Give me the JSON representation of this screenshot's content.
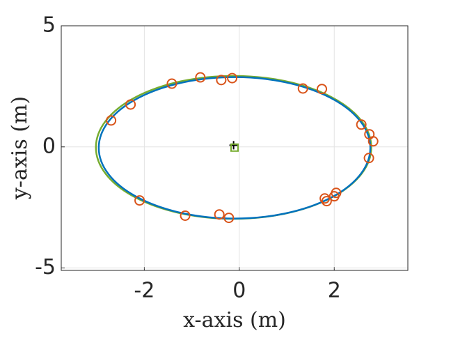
{
  "chart_data": {
    "type": "scatter",
    "xlabel": "x-axis (m)",
    "ylabel": "y-axis (m)",
    "xlim": [
      -3.75,
      3.55
    ],
    "ylim": [
      -5.1,
      5
    ],
    "xticks": [
      -2,
      0,
      2
    ],
    "yticks": [
      -5,
      0,
      5
    ],
    "grid": true,
    "series": [
      {
        "color": "#D95319",
        "marker": "circle",
        "x": [
          -2.7,
          -2.29,
          -1.42,
          -0.82,
          -0.38,
          -0.15,
          1.34,
          1.74,
          2.57,
          2.74,
          2.82,
          2.73,
          2.04,
          2.0,
          1.8,
          1.84,
          -2.1,
          -1.14,
          -0.42,
          -0.22
        ],
        "y": [
          1.09,
          1.75,
          2.61,
          2.87,
          2.76,
          2.84,
          2.41,
          2.39,
          0.92,
          0.52,
          0.23,
          -0.46,
          -1.9,
          -2.04,
          -2.13,
          -2.24,
          -2.21,
          -2.84,
          -2.79,
          -2.93
        ]
      }
    ],
    "ellipses": [
      {
        "color": "#77AC30",
        "center": [
          -0.12,
          -0.02
        ],
        "radii": [
          2.9,
          2.95
        ]
      },
      {
        "color": "#0072BD",
        "center": [
          -0.1,
          -0.04
        ],
        "radii": [
          2.86,
          2.92
        ]
      }
    ],
    "centers": [
      {
        "marker": "plus",
        "color": "#000000",
        "x": -0.12,
        "y": 0.07
      },
      {
        "marker": "square",
        "color": "#77AC30",
        "x": -0.1,
        "y": -0.03
      }
    ]
  }
}
